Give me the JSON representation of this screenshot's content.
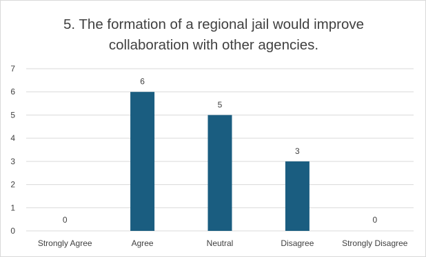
{
  "chart_data": {
    "type": "bar",
    "title": "5. The formation of a regional jail would improve\ncollaboration with other agencies.",
    "categories": [
      "Strongly Agree",
      "Agree",
      "Neutral",
      "Disagree",
      "Strongly Disagree"
    ],
    "values": [
      0,
      6,
      5,
      3,
      0
    ],
    "data_labels": [
      "0",
      "6",
      "5",
      "3",
      "0"
    ],
    "yticks": [
      "0",
      "1",
      "2",
      "3",
      "4",
      "5",
      "6",
      "7"
    ],
    "ylim": [
      0,
      7
    ],
    "grid": true,
    "legend": "none",
    "bar_color": "#1a5d80",
    "grid_color": "#d9d9d9"
  }
}
